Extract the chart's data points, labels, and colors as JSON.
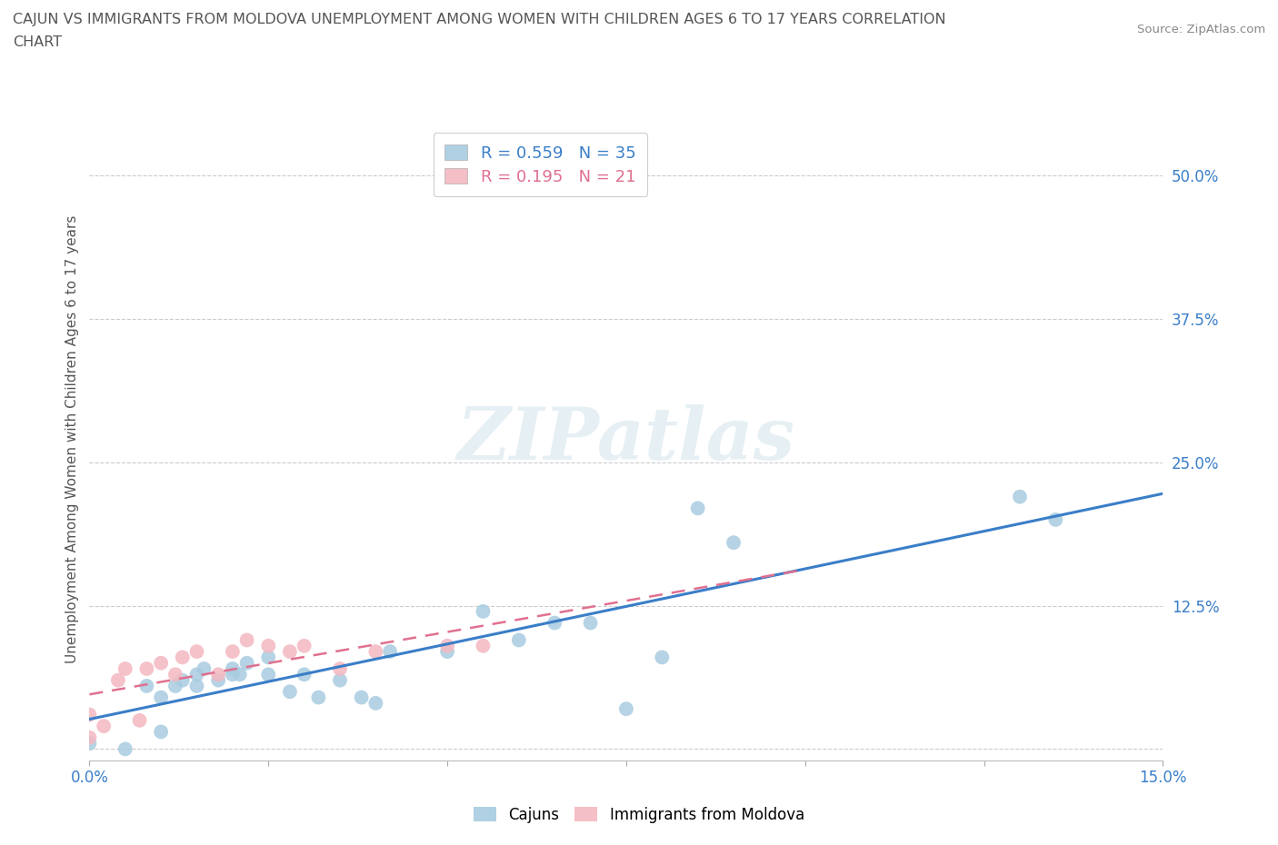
{
  "title_line1": "CAJUN VS IMMIGRANTS FROM MOLDOVA UNEMPLOYMENT AMONG WOMEN WITH CHILDREN AGES 6 TO 17 YEARS CORRELATION",
  "title_line2": "CHART",
  "source": "Source: ZipAtlas.com",
  "ylabel_label": "Unemployment Among Women with Children Ages 6 to 17 years",
  "xlim": [
    0.0,
    0.15
  ],
  "ylim": [
    -0.01,
    0.55
  ],
  "ytick_positions": [
    0.0,
    0.125,
    0.25,
    0.375,
    0.5
  ],
  "ytick_labels": [
    "",
    "12.5%",
    "25.0%",
    "37.5%",
    "50.0%"
  ],
  "legend_r1": "R = 0.559   N = 35",
  "legend_r2": "R = 0.195   N = 21",
  "cajun_color": "#a8cce0",
  "moldova_color": "#f4b8c1",
  "trendline_cajun_color": "#3a7ec8",
  "trendline_moldova_color": "#e07090",
  "watermark": "ZIPatlas",
  "cajun_x": [
    0.0,
    0.005,
    0.008,
    0.01,
    0.01,
    0.012,
    0.013,
    0.015,
    0.015,
    0.016,
    0.018,
    0.02,
    0.02,
    0.021,
    0.022,
    0.025,
    0.025,
    0.028,
    0.03,
    0.032,
    0.035,
    0.038,
    0.04,
    0.042,
    0.05,
    0.055,
    0.06,
    0.065,
    0.07,
    0.075,
    0.08,
    0.085,
    0.09,
    0.13,
    0.135
  ],
  "cajun_y": [
    0.005,
    0.0,
    0.055,
    0.015,
    0.045,
    0.055,
    0.06,
    0.055,
    0.065,
    0.07,
    0.06,
    0.065,
    0.07,
    0.065,
    0.075,
    0.065,
    0.08,
    0.05,
    0.065,
    0.045,
    0.06,
    0.045,
    0.04,
    0.085,
    0.085,
    0.12,
    0.095,
    0.11,
    0.11,
    0.035,
    0.08,
    0.21,
    0.18,
    0.22,
    0.2
  ],
  "moldova_x": [
    0.0,
    0.0,
    0.002,
    0.004,
    0.005,
    0.007,
    0.008,
    0.01,
    0.012,
    0.013,
    0.015,
    0.018,
    0.02,
    0.022,
    0.025,
    0.028,
    0.03,
    0.035,
    0.04,
    0.05,
    0.055
  ],
  "moldova_y": [
    0.01,
    0.03,
    0.02,
    0.06,
    0.07,
    0.025,
    0.07,
    0.075,
    0.065,
    0.08,
    0.085,
    0.065,
    0.085,
    0.095,
    0.09,
    0.085,
    0.09,
    0.07,
    0.085,
    0.09,
    0.09
  ]
}
